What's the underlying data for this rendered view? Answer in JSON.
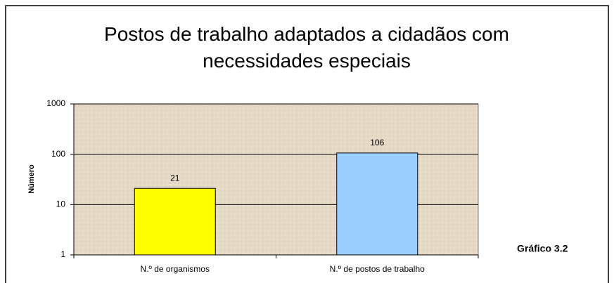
{
  "chart_data": {
    "type": "bar",
    "title": "Postos de trabalho adaptados a cidadãos com necessidades especiais",
    "y_label": "Número",
    "annotation": "Gráfico 3.2",
    "categories": [
      "N.º de organismos",
      "N.º de postos de trabalho"
    ],
    "values": [
      21,
      106
    ],
    "colors": [
      "#ffff00",
      "#99ccff"
    ],
    "ylim": [
      1,
      1000
    ],
    "yticks": [
      1,
      10,
      100,
      1000
    ],
    "log_scale": true,
    "grid": true
  }
}
